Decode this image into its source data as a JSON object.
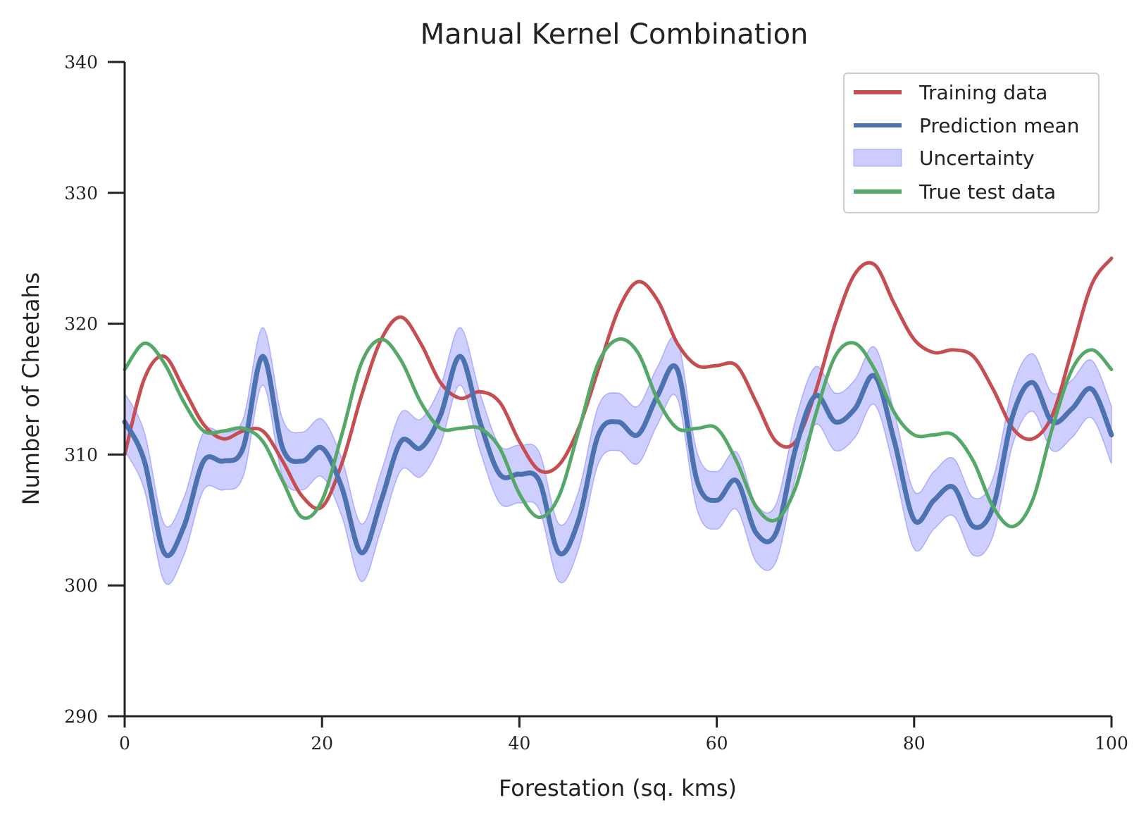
{
  "chart_data": {
    "type": "line",
    "title": "Manual Kernel Combination",
    "xlabel": "Forestation (sq. kms)",
    "ylabel": "Number of Cheetahs",
    "xlim": [
      0,
      100
    ],
    "ylim": [
      290,
      340
    ],
    "xticks": [
      "0",
      "20",
      "40",
      "60",
      "80",
      "100"
    ],
    "yticks": [
      "290",
      "300",
      "310",
      "320",
      "330",
      "340"
    ],
    "grid": false,
    "legend_position": "top-right",
    "x": [
      0,
      2,
      4,
      6,
      8,
      10,
      12,
      14,
      16,
      18,
      20,
      22,
      24,
      26,
      28,
      30,
      32,
      34,
      36,
      38,
      40,
      42,
      44,
      46,
      48,
      50,
      52,
      54,
      56,
      58,
      60,
      62,
      64,
      66,
      68,
      70,
      72,
      74,
      76,
      78,
      80,
      82,
      84,
      86,
      88,
      90,
      92,
      94,
      96,
      98,
      100
    ],
    "series": [
      {
        "name": "Training data",
        "color": "#c44e52",
        "values": [
          310.0,
          315.8,
          317.5,
          315.0,
          312.3,
          311.2,
          311.8,
          311.8,
          309.5,
          306.8,
          306.0,
          309.3,
          314.5,
          318.8,
          320.5,
          318.5,
          315.5,
          314.3,
          314.8,
          314.0,
          311.0,
          308.8,
          309.2,
          312.0,
          316.5,
          321.0,
          323.2,
          321.8,
          318.5,
          316.8,
          316.8,
          316.8,
          314.0,
          311.0,
          311.0,
          314.8,
          320.0,
          323.8,
          324.5,
          321.5,
          318.8,
          317.8,
          318.0,
          317.5,
          315.0,
          312.0,
          311.2,
          313.0,
          318.0,
          323.0,
          325.0
        ]
      },
      {
        "name": "Prediction mean",
        "color": "#4c72b0",
        "values": [
          312.5,
          309.5,
          302.5,
          304.5,
          309.5,
          309.5,
          310.5,
          317.5,
          310.5,
          309.5,
          310.5,
          307.5,
          302.5,
          306.5,
          311.0,
          310.5,
          313.0,
          317.5,
          312.5,
          308.5,
          308.5,
          308.0,
          302.5,
          305.0,
          311.5,
          312.5,
          311.5,
          314.5,
          316.5,
          308.0,
          306.5,
          308.0,
          304.0,
          304.0,
          310.5,
          314.5,
          312.5,
          313.5,
          316.0,
          311.0,
          305.0,
          306.5,
          307.5,
          304.5,
          306.0,
          313.0,
          315.5,
          312.5,
          313.5,
          315.0,
          311.5
        ]
      },
      {
        "name": "True test data",
        "color": "#55a868",
        "values": [
          316.5,
          318.5,
          317.0,
          314.0,
          311.8,
          311.8,
          312.0,
          311.0,
          308.0,
          305.2,
          306.5,
          311.5,
          317.0,
          318.8,
          317.2,
          314.0,
          312.0,
          312.0,
          312.0,
          310.5,
          307.0,
          305.2,
          306.8,
          311.8,
          317.0,
          318.8,
          317.8,
          314.2,
          312.0,
          312.0,
          312.0,
          309.5,
          306.0,
          305.0,
          307.5,
          313.0,
          317.5,
          318.5,
          316.5,
          313.2,
          311.5,
          311.5,
          311.5,
          309.5,
          306.0,
          304.5,
          306.5,
          312.0,
          316.5,
          318.0,
          316.5
        ]
      }
    ],
    "uncertainty": {
      "name": "Uncertainty",
      "color": "#8080ff",
      "half_width": 2.2
    }
  }
}
